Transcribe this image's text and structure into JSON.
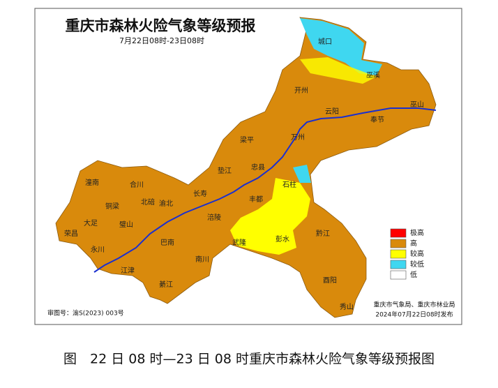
{
  "header": {
    "title": "重庆市森林火险气象等级预报",
    "subtitle": "7月22日08时-23日08时"
  },
  "places": [
    "城口",
    "巫溪",
    "巫山",
    "开州",
    "云阳",
    "奉节",
    "万州",
    "梁平",
    "忠县",
    "垫江",
    "石柱",
    "长寿",
    "丰都",
    "潼南",
    "合川",
    "北碚",
    "渝北",
    "铜梁",
    "大足",
    "璧山",
    "荣昌",
    "永川",
    "巴南",
    "涪陵",
    "武隆",
    "彭水",
    "黔江",
    "南川",
    "江津",
    "綦江",
    "酉阳",
    "秀山"
  ],
  "legend": [
    {
      "label": "极高",
      "color": "#ff0000"
    },
    {
      "label": "高",
      "color": "#d98a0c"
    },
    {
      "label": "较高",
      "color": "#ffff00"
    },
    {
      "label": "较低",
      "color": "#3fd7f0"
    },
    {
      "label": "低",
      "color": "#ffffff"
    }
  ],
  "footer": {
    "approval": "审图号：渝S(2023) 003号",
    "publisher": "重庆市气象局、重庆市林业局",
    "issued": "2024年07月22日08时发布"
  },
  "caption": "图　22 日 08 时—23 日 08 时重庆市森林火险气象等级预报图"
}
